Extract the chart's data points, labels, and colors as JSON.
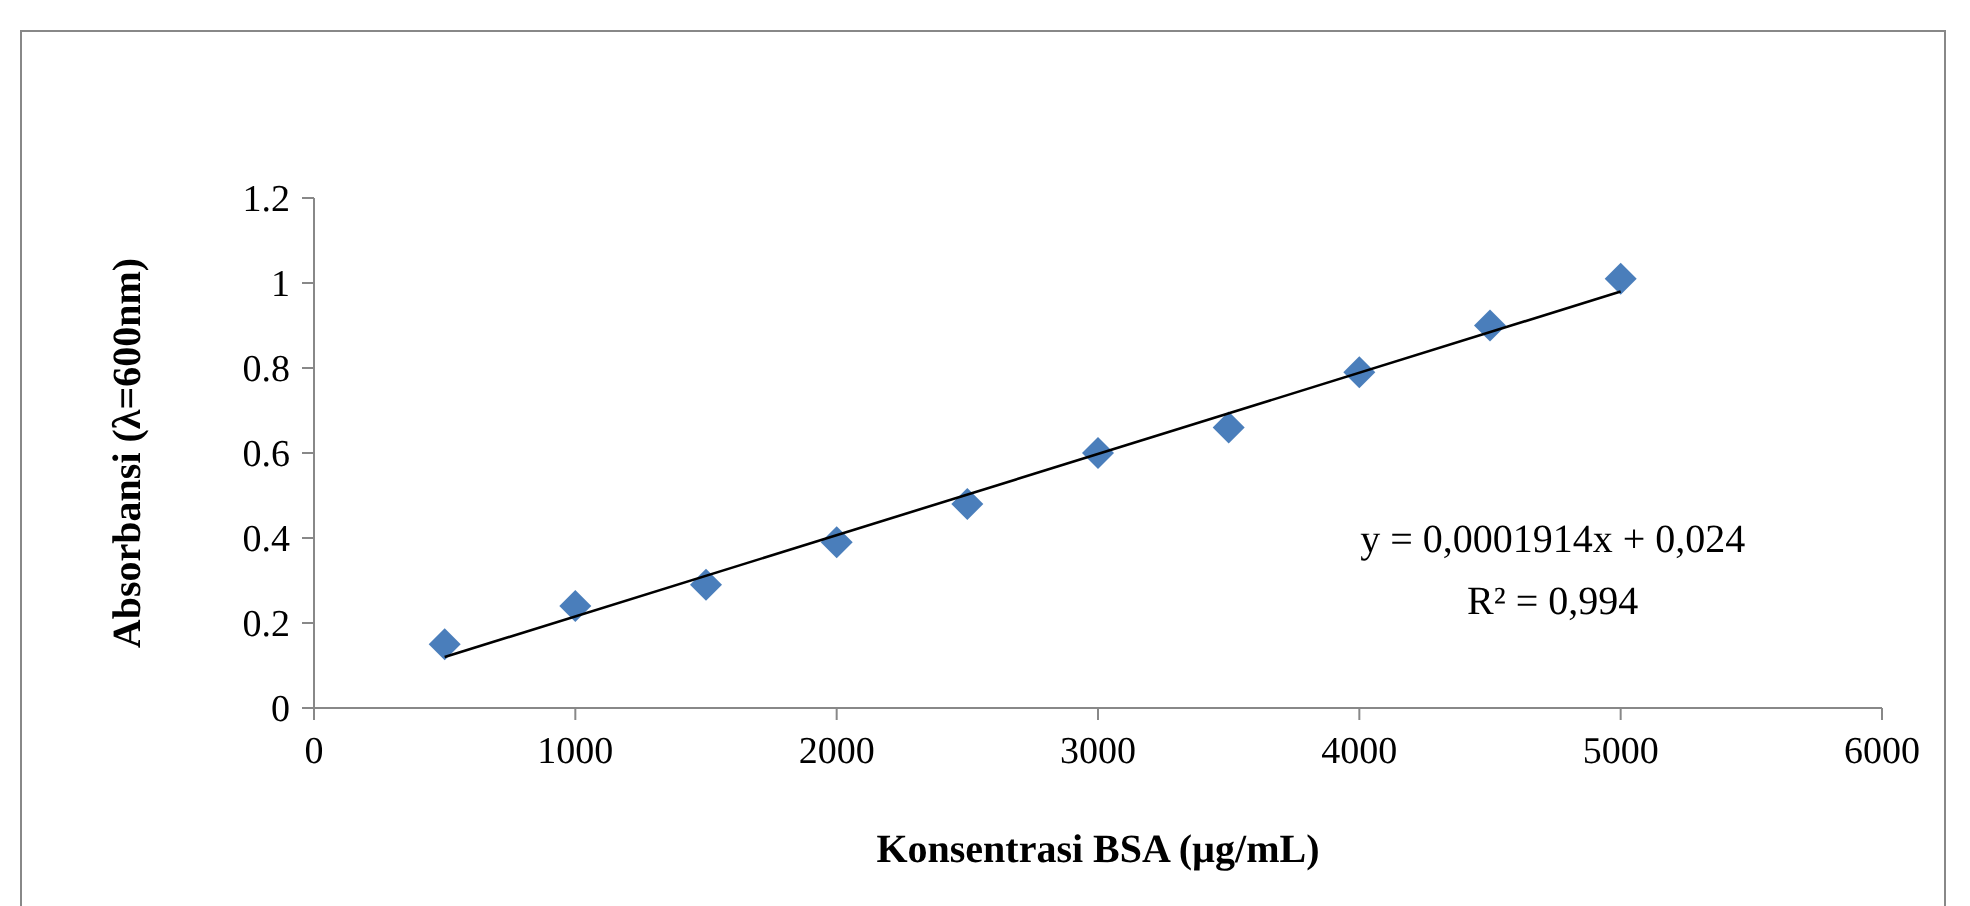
{
  "chart_data": {
    "type": "scatter",
    "xlabel": "Konsentrasi BSA (µg/mL)",
    "ylabel": "Absorbansi (λ=600nm)",
    "x": [
      500,
      1000,
      1500,
      2000,
      2500,
      3000,
      3500,
      4000,
      4500,
      5000
    ],
    "series": [
      {
        "color": "#4a7ebb",
        "marker": "diamond",
        "values": [
          0.15,
          0.24,
          0.29,
          0.39,
          0.48,
          0.6,
          0.66,
          0.79,
          0.9,
          1.01
        ]
      },
      {
        "type": "line",
        "color": "#000000",
        "marker": "none",
        "x": [
          500,
          5000
        ],
        "values": [
          0.12,
          0.98
        ]
      }
    ],
    "xlim": [
      0,
      6000
    ],
    "xticks": [
      0,
      1000,
      2000,
      3000,
      4000,
      5000,
      6000
    ],
    "ylim": [
      0,
      1.2
    ],
    "yticks": [
      0,
      0.2,
      0.4,
      0.6,
      0.8,
      1,
      1.2
    ],
    "annotations": [
      "y = 0,0001914x + 0,024",
      "R² = 0,994"
    ]
  }
}
